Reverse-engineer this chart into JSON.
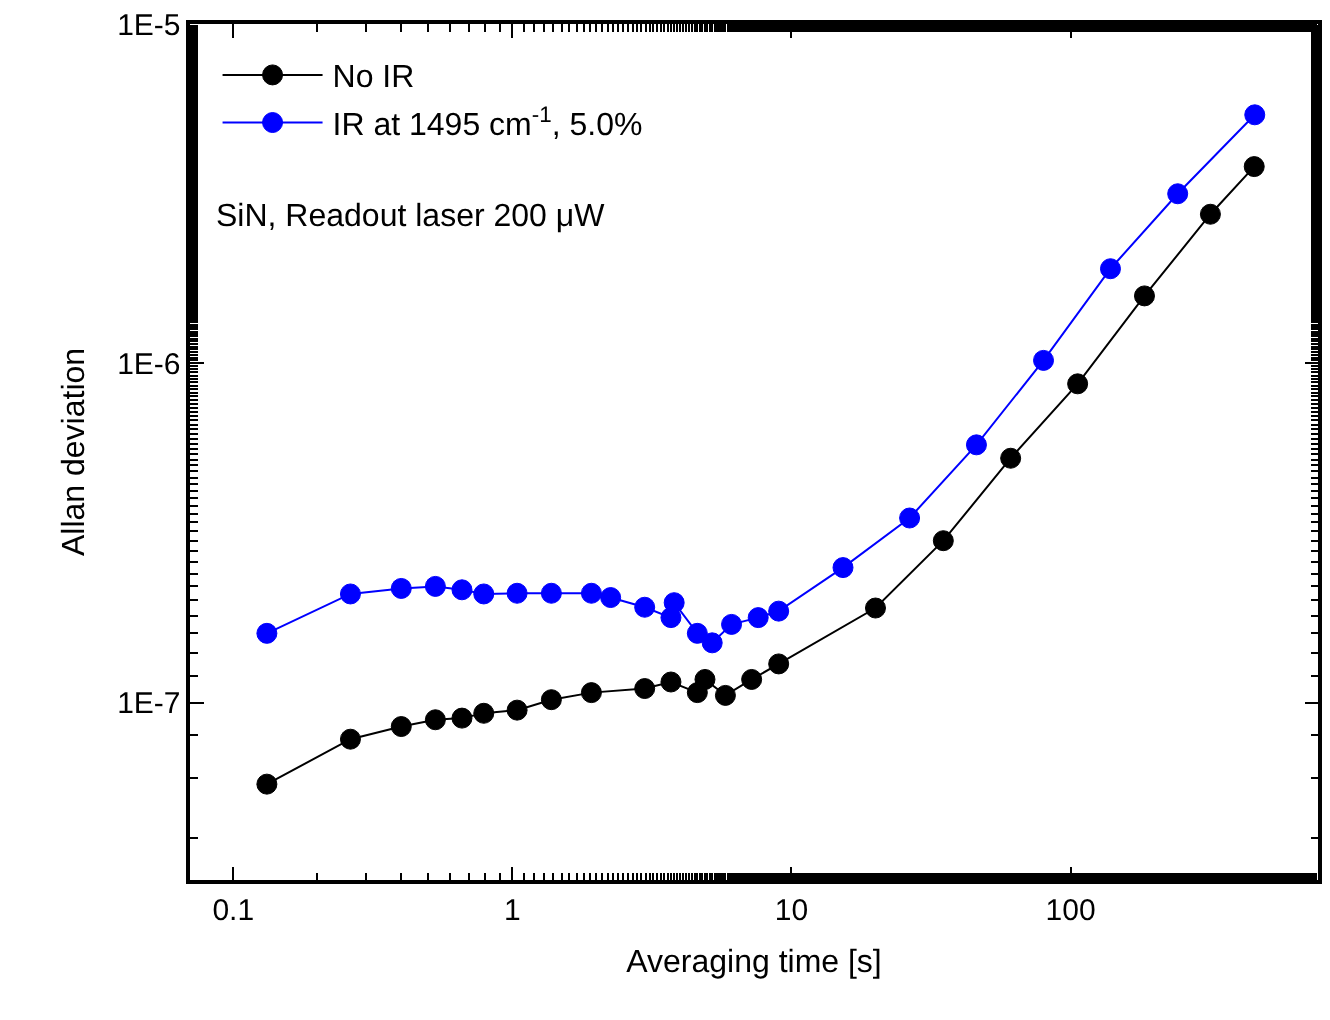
{
  "chart_data": {
    "type": "line",
    "xlabel": "Averaging time [s]",
    "ylabel": "Allan deviation",
    "log": "xy",
    "grid": false,
    "legend": "top left",
    "marker": "circle",
    "line_style": "solid",
    "xlim": [
      0.07,
      770
    ],
    "xticks": [
      0.1,
      1,
      10,
      100
    ],
    "ylim": [
      3e-08,
      1e-05
    ],
    "yticks": [
      {
        "value": 1e-05,
        "label": "1E-5"
      },
      {
        "value": 1e-06,
        "label": "1E-6"
      },
      {
        "value": 1e-07,
        "label": "1E-7"
      }
    ],
    "annotations": [
      "SiN, Readout laser 200 μW"
    ],
    "series": [
      {
        "name": "No IR",
        "color": "#000000",
        "x": [
          0.132,
          0.263,
          0.4,
          0.53,
          0.66,
          0.79,
          1.04,
          1.38,
          1.92,
          2.98,
          3.7,
          4.6,
          4.9,
          5.8,
          7.2,
          9.0,
          20,
          35,
          61,
          106,
          184,
          317,
          455
        ],
        "values": [
          5.75e-08,
          7.8e-08,
          8.5e-08,
          8.9e-08,
          9e-08,
          9.3e-08,
          9.5e-08,
          1.02e-07,
          1.07e-07,
          1.1e-07,
          1.15e-07,
          1.07e-07,
          1.17e-07,
          1.05e-07,
          1.17e-07,
          1.3e-07,
          1.9e-07,
          3e-07,
          5.25e-07,
          8.7e-07,
          1.58e-06,
          2.75e-06,
          3.8e-06
        ]
      },
      {
        "name": "IR at 1495 cm$^{-1}$, 5.0%",
        "color": "#0000ff",
        "x": [
          0.132,
          0.263,
          0.4,
          0.53,
          0.66,
          0.79,
          1.04,
          1.38,
          1.92,
          2.25,
          2.98,
          3.7,
          3.8,
          4.6,
          5.2,
          6.1,
          7.6,
          9.0,
          15.3,
          26.5,
          46,
          80,
          139,
          242,
          457
        ],
        "values": [
          1.6e-07,
          2.09e-07,
          2.17e-07,
          2.2e-07,
          2.15e-07,
          2.09e-07,
          2.1e-07,
          2.1e-07,
          2.1e-07,
          2.04e-07,
          1.91e-07,
          1.78e-07,
          1.97e-07,
          1.6e-07,
          1.5e-07,
          1.7e-07,
          1.78e-07,
          1.86e-07,
          2.5e-07,
          3.5e-07,
          5.75e-07,
          1.02e-06,
          1.9e-06,
          3.16e-06,
          5.4e-06
        ]
      }
    ]
  }
}
